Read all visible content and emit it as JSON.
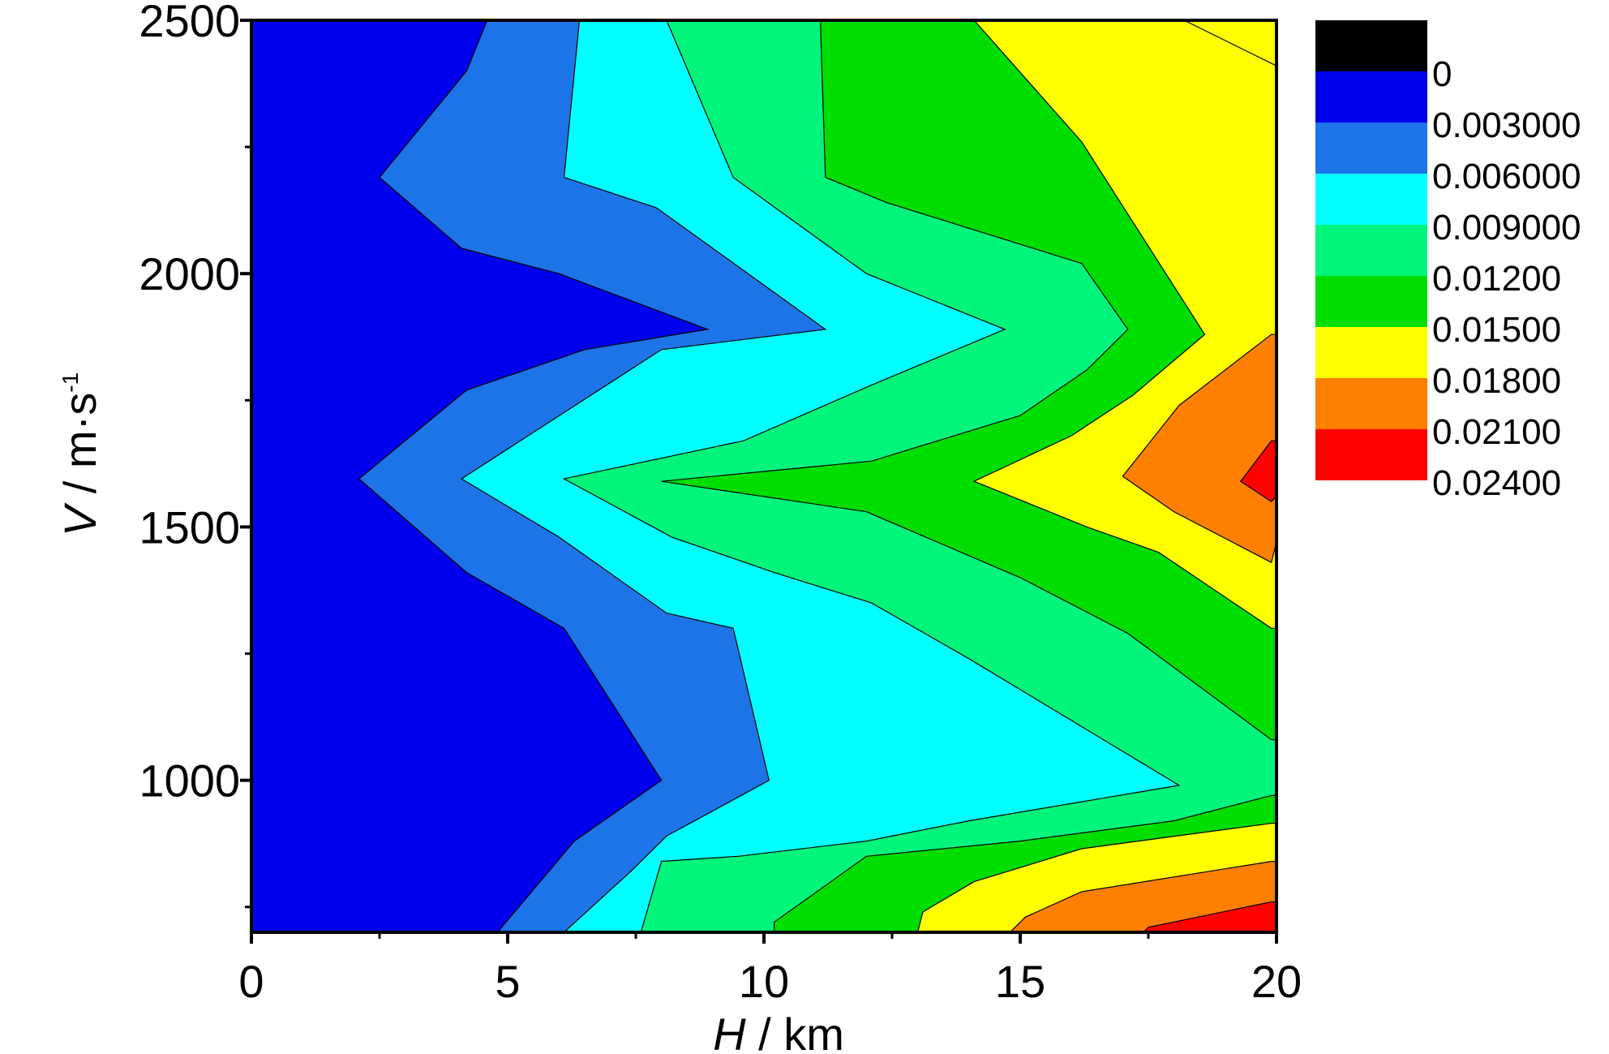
{
  "chart_data": {
    "type": "heatmap",
    "subtype": "filled-contour",
    "xlabel_var": "H",
    "xlabel_unit": " / km",
    "ylabel_var": "V",
    "ylabel_unit": " / m·s",
    "ylabel_sup": "-1",
    "xlim": [
      0,
      20
    ],
    "ylim": [
      700,
      2500
    ],
    "x_ticks": [
      0,
      5,
      10,
      15,
      20
    ],
    "x_tick_labels": [
      "0",
      "5",
      "10",
      "15",
      "20"
    ],
    "x_minor_ticks": [
      2.5,
      7.5,
      12.5,
      17.5
    ],
    "y_ticks": [
      1000,
      1500,
      2000,
      2500
    ],
    "y_tick_labels": [
      "1000",
      "1500",
      "2000",
      "2500"
    ],
    "y_minor_ticks": [
      750,
      1250,
      1750,
      2250
    ],
    "levels": [
      "0",
      "0.003000",
      "0.006000",
      "0.009000",
      "0.01200",
      "0.01500",
      "0.01800",
      "0.02100",
      "0.02400"
    ],
    "level_colors": [
      "#000000",
      "#0000ee",
      "#1c74e8",
      "#00ffff",
      "#00f57a",
      "#00dd00",
      "#ffff00",
      "#ff7f00",
      "#ff0000"
    ],
    "contour_lines": [
      {
        "level": "0.003000",
        "points": [
          [
            4.6,
            2500
          ],
          [
            4.2,
            2400
          ],
          [
            2.5,
            2190
          ],
          [
            4.1,
            2050
          ],
          [
            6.0,
            2000
          ],
          [
            8.9,
            1890
          ],
          [
            6.5,
            1850
          ],
          [
            4.2,
            1770
          ],
          [
            2.1,
            1595
          ],
          [
            4.2,
            1410
          ],
          [
            6.1,
            1300
          ],
          [
            8.0,
            1000
          ],
          [
            6.3,
            880
          ],
          [
            4.8,
            700
          ]
        ]
      },
      {
        "level": "0.006000",
        "points": [
          [
            6.4,
            2500
          ],
          [
            6.1,
            2190
          ],
          [
            7.9,
            2130
          ],
          [
            11.2,
            1890
          ],
          [
            8.0,
            1850
          ],
          [
            4.1,
            1595
          ],
          [
            6.0,
            1480
          ],
          [
            8.1,
            1330
          ],
          [
            9.4,
            1300
          ],
          [
            10.1,
            1000
          ],
          [
            8.1,
            890
          ],
          [
            7.4,
            820
          ],
          [
            6.1,
            700
          ]
        ]
      },
      {
        "level": "0.009000",
        "points": [
          [
            8.1,
            2500
          ],
          [
            9.4,
            2190
          ],
          [
            12.0,
            2000
          ],
          [
            14.7,
            1890
          ],
          [
            12.1,
            1780
          ],
          [
            9.6,
            1670
          ],
          [
            6.1,
            1595
          ],
          [
            8.2,
            1480
          ],
          [
            10.2,
            1410
          ],
          [
            12.1,
            1350
          ],
          [
            14.0,
            1240
          ],
          [
            18.1,
            990
          ],
          [
            14.0,
            920
          ],
          [
            12.0,
            880
          ],
          [
            9.5,
            850
          ],
          [
            8.0,
            840
          ],
          [
            7.6,
            700
          ]
        ]
      },
      {
        "level": "0.01200",
        "points": [
          [
            11.1,
            2500
          ],
          [
            11.2,
            2190
          ],
          [
            12.4,
            2140
          ],
          [
            16.2,
            2020
          ],
          [
            17.1,
            1890
          ],
          [
            16.3,
            1810
          ],
          [
            15.0,
            1720
          ],
          [
            12.1,
            1630
          ],
          [
            8.0,
            1590
          ],
          [
            12.0,
            1530
          ],
          [
            15.0,
            1400
          ],
          [
            17.1,
            1290
          ],
          [
            19.9,
            1080
          ]
        ]
      },
      {
        "level": "0.01200b",
        "points": [
          [
            19.9,
            970
          ],
          [
            18.0,
            920
          ],
          [
            15.0,
            880
          ],
          [
            12.0,
            850
          ],
          [
            10.2,
            720
          ],
          [
            10.2,
            700
          ]
        ]
      },
      {
        "level": "0.01500",
        "points": [
          [
            14.1,
            2500
          ],
          [
            16.2,
            2260
          ],
          [
            18.6,
            1880
          ],
          [
            17.2,
            1760
          ],
          [
            16.0,
            1680
          ],
          [
            14.1,
            1590
          ],
          [
            16.3,
            1500
          ],
          [
            17.7,
            1450
          ],
          [
            19.9,
            1300
          ]
        ]
      },
      {
        "level": "0.01500b",
        "points": [
          [
            19.9,
            915
          ],
          [
            16.2,
            865
          ],
          [
            14.1,
            800
          ],
          [
            13.1,
            740
          ],
          [
            13.0,
            700
          ]
        ]
      },
      {
        "level": "0.01800",
        "points": [
          [
            19.9,
            1880
          ],
          [
            18.1,
            1740
          ],
          [
            17.0,
            1600
          ],
          [
            18.0,
            1530
          ],
          [
            19.9,
            1430
          ]
        ]
      },
      {
        "level": "0.01800b",
        "points": [
          [
            19.9,
            840
          ],
          [
            16.2,
            780
          ],
          [
            15.1,
            730
          ],
          [
            14.8,
            700
          ]
        ]
      },
      {
        "level": "0.02100",
        "points": [
          [
            19.9,
            1670
          ],
          [
            19.3,
            1590
          ],
          [
            19.9,
            1550
          ]
        ]
      },
      {
        "level": "0.02100b",
        "points": [
          [
            19.9,
            760
          ],
          [
            17.5,
            710
          ],
          [
            17.4,
            700
          ]
        ]
      },
      {
        "level": "top-right",
        "points": [
          [
            18.2,
            2500
          ],
          [
            20.0,
            2410
          ]
        ]
      }
    ]
  }
}
